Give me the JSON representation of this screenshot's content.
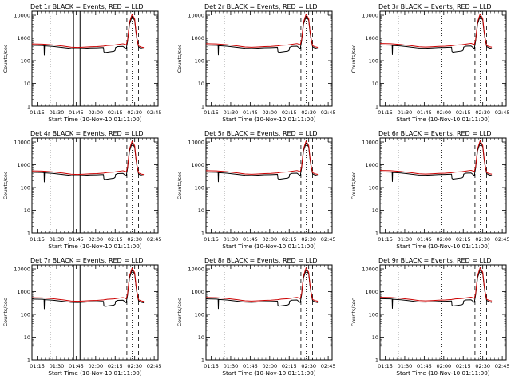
{
  "figure": {
    "xlabel": "Start Time (10-Nov-10 01:11:00)",
    "ylabel": "Counts/sec",
    "legend_text": "BLACK = Events, RED = LLD",
    "colors": {
      "events": "#000000",
      "lld": "#cc0000",
      "axes": "#000000",
      "background": "#ffffff"
    }
  },
  "chart_data": [
    {
      "type": "line",
      "title": "Det 1r  BLACK = Events, RED = LLD",
      "detector": "Det 1r"
    },
    {
      "type": "line",
      "title": "Det 2r  BLACK = Events, RED = LLD",
      "detector": "Det 2r"
    },
    {
      "type": "line",
      "title": "Det 3r  BLACK = Events, RED = LLD",
      "detector": "Det 3r"
    },
    {
      "type": "line",
      "title": "Det 4r  BLACK = Events, RED = LLD",
      "detector": "Det 4r"
    },
    {
      "type": "line",
      "title": "Det 5r  BLACK = Events, RED = LLD",
      "detector": "Det 5r"
    },
    {
      "type": "line",
      "title": "Det 6r  BLACK = Events, RED = LLD",
      "detector": "Det 6r"
    },
    {
      "type": "line",
      "title": "Det 7r  BLACK = Events, RED = LLD",
      "detector": "Det 7r"
    },
    {
      "type": "line",
      "title": "Det 8r  BLACK = Events, RED = LLD",
      "detector": "Det 8r"
    },
    {
      "type": "line",
      "title": "Det 9r  BLACK = Events, RED = LLD",
      "detector": "Det 9r"
    }
  ],
  "shared_axes": {
    "x_unit": "minutes since 01:11:00",
    "xlim": [
      0,
      97
    ],
    "x_ticks": [
      4,
      19,
      34,
      49,
      64,
      79,
      94
    ],
    "x_tick_labels": [
      "01:15",
      "01:30",
      "01:45",
      "02:00",
      "02:15",
      "02:30",
      "02:45"
    ],
    "y_scale": "log",
    "ylim": [
      1,
      15000
    ],
    "y_ticks": [
      1,
      10,
      100,
      1000,
      10000
    ],
    "y_tick_labels": [
      "1",
      "10",
      "100",
      "1000",
      "10000"
    ]
  },
  "markers": {
    "dotted_lines_x": [
      14,
      47,
      77
    ],
    "solid_lines_x": [
      32,
      37
    ],
    "dashed_lines_x": [
      73,
      82
    ],
    "solid_detectors": [
      0,
      3,
      6
    ]
  },
  "series": {
    "lld": {
      "name": "LLD",
      "x": [
        0,
        8,
        16,
        24,
        30,
        35,
        40,
        45,
        50,
        55,
        58,
        63,
        66,
        70,
        72.5,
        73.5,
        75,
        77,
        79,
        80,
        80.6,
        82,
        84,
        86
      ],
      "y": [
        550,
        540,
        500,
        440,
        395,
        385,
        395,
        410,
        420,
        440,
        470,
        490,
        520,
        560,
        500,
        800,
        5000,
        11000,
        7000,
        2000,
        1100,
        450,
        400,
        380
      ]
    },
    "events": {
      "name": "Events",
      "x": [
        0,
        8,
        9.3,
        9.5,
        9.7,
        10,
        16,
        24,
        30,
        35,
        40,
        45,
        50,
        55,
        55.3,
        56,
        63,
        64,
        64.3,
        66,
        70,
        72.5,
        73.5,
        75,
        77,
        79,
        80,
        80.6,
        82,
        84,
        86
      ],
      "y": [
        480,
        470,
        460,
        180,
        460,
        450,
        430,
        380,
        345,
        340,
        350,
        365,
        370,
        380,
        250,
        230,
        260,
        290,
        380,
        420,
        430,
        330,
        700,
        4000,
        9000,
        6000,
        1800,
        1000,
        400,
        350,
        330
      ]
    }
  }
}
